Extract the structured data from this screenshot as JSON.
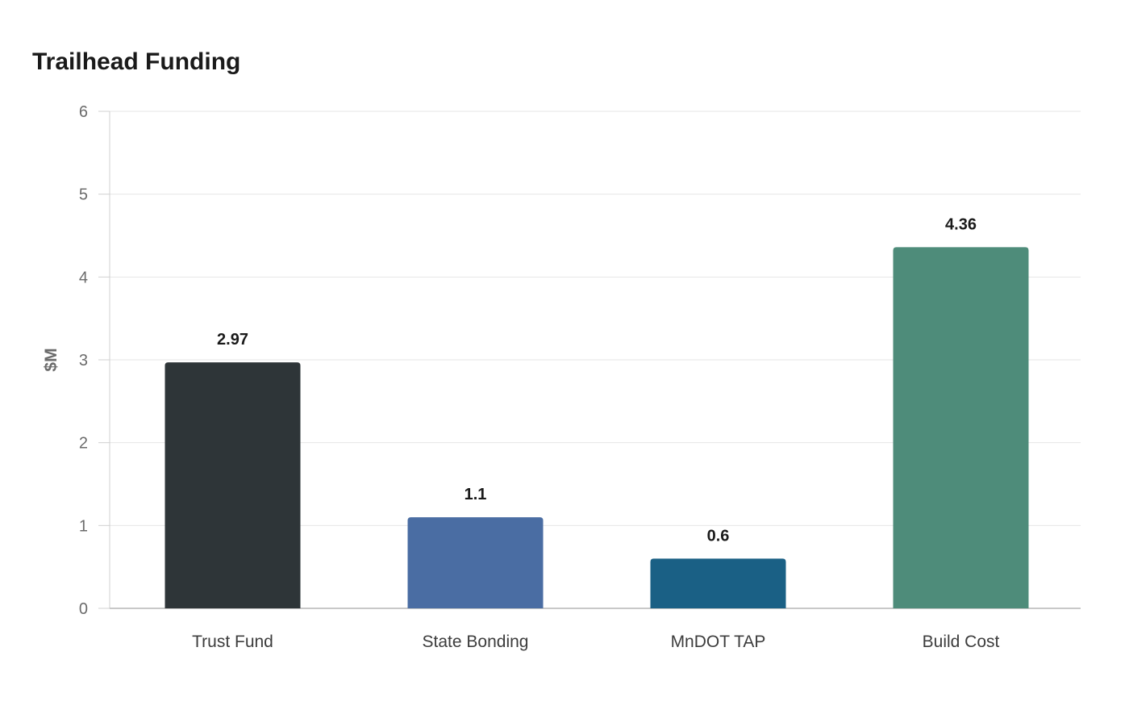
{
  "chart_data": {
    "type": "bar",
    "title": "Trailhead Funding",
    "xlabel": "",
    "ylabel": "$M",
    "categories": [
      "Trust Fund",
      "State Bonding",
      "MnDOT TAP",
      "Build Cost"
    ],
    "values": [
      2.97,
      1.1,
      0.6,
      4.36
    ],
    "value_labels": [
      "2.97",
      "1.1",
      "0.6",
      "4.36"
    ],
    "colors": [
      "#2e3538",
      "#4a6da3",
      "#1a6085",
      "#4e8c7a"
    ],
    "ylim": [
      0,
      6
    ],
    "yticks": [
      0,
      1,
      2,
      3,
      4,
      5,
      6
    ],
    "grid": true,
    "legend": "none"
  }
}
